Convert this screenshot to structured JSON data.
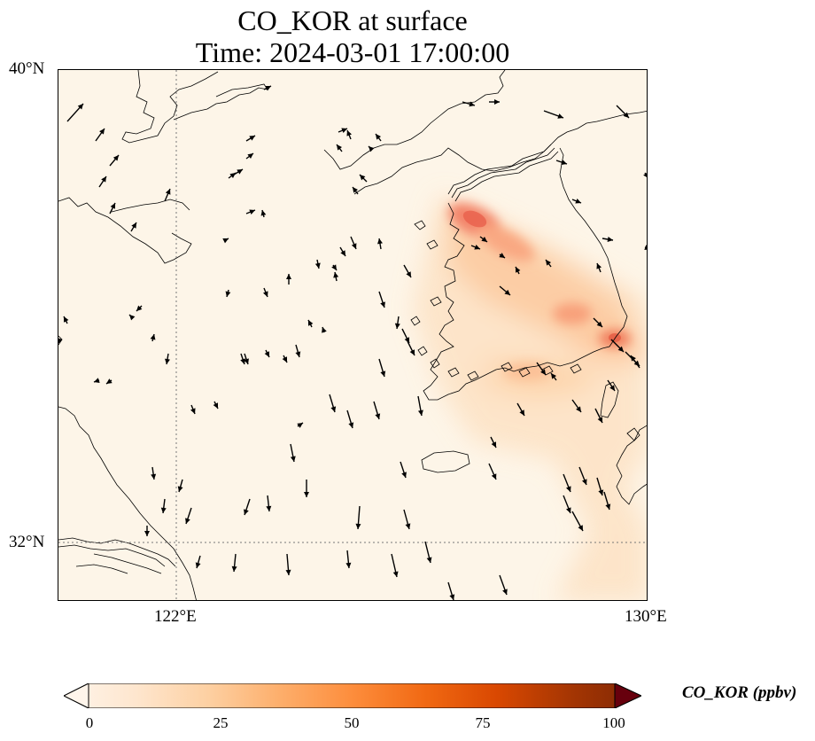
{
  "title": "CO_KOR at surface",
  "subtitle": "Time: 2024-03-01 17:00:00",
  "lat_labels": [
    "40°N",
    "32°N"
  ],
  "lon_labels": [
    "122°E",
    "130°E"
  ],
  "colorbar": {
    "label": "CO_KOR (ppbv)",
    "ticks": [
      "0",
      "25",
      "50",
      "75",
      "100"
    ],
    "min": 0,
    "max": 100,
    "colormap": [
      "#fff5eb",
      "#fee6ce",
      "#fdd0a2",
      "#fdae6b",
      "#fd8d3c",
      "#f16913",
      "#d94801",
      "#a63603",
      "#7f2704"
    ]
  },
  "map": {
    "extent": {
      "lon_min": 120,
      "lon_max": 130,
      "lat_min": 31,
      "lat_max": 40
    },
    "gridlines": {
      "lons": [
        122
      ],
      "lats": [
        32
      ]
    },
    "background": "#fdf5e8",
    "coast_color": "#000000",
    "hotspots": [
      {
        "lon": 126.9,
        "lat": 37.55,
        "value": 55
      },
      {
        "lon": 127.3,
        "lat": 37.3,
        "value": 40
      },
      {
        "lon": 129.0,
        "lat": 35.3,
        "value": 45
      },
      {
        "lon": 128.7,
        "lat": 35.6,
        "value": 35
      },
      {
        "lon": 126.9,
        "lat": 34.8,
        "value": 28
      },
      {
        "lon": 128.0,
        "lat": 36.0,
        "value": 22
      }
    ]
  }
}
